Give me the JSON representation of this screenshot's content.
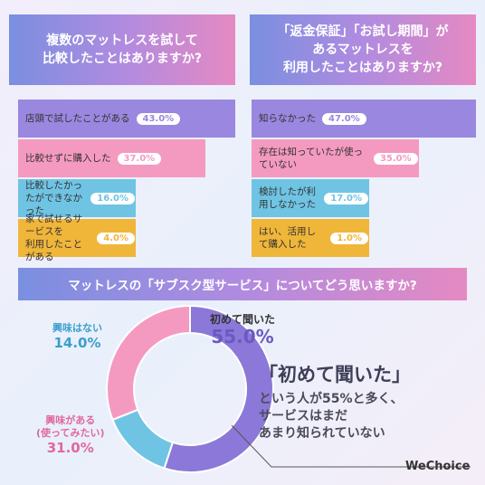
{
  "q1": {
    "title": "複数のマットレスを試して\n比較したことはありますか?",
    "chart_data": {
      "type": "bar",
      "categories": [
        "店頭で試したことがある",
        "比較せずに購入した",
        "比較したかったができなかった",
        "家で試せるサービスを\n利用したことがある"
      ],
      "values": [
        43.0,
        37.0,
        16.0,
        4.0
      ],
      "value_labels": [
        "43.0%",
        "37.0%",
        "16.0%",
        "4.0%"
      ],
      "colors": [
        "#9a87df",
        "#f49ac0",
        "#6fc4e4",
        "#f0b63a"
      ]
    }
  },
  "q2": {
    "title": "「返金保証」「お試し期間」が\nあるマットレスを\n利用したことはありますか?",
    "chart_data": {
      "type": "bar",
      "categories": [
        "知らなかった",
        "存在は知っていたが使っていない",
        "検討したが利用しなかった",
        "はい、活用して購入した"
      ],
      "values": [
        47.0,
        35.0,
        17.0,
        1.0
      ],
      "value_labels": [
        "47.0%",
        "35.0%",
        "17.0%",
        "1.0%"
      ],
      "colors": [
        "#9a87df",
        "#f49ac0",
        "#6fc4e4",
        "#f0b63a"
      ]
    }
  },
  "q3": {
    "title": "マットレスの「サブスク型サービス」についてどう思いますか?",
    "chart_data": {
      "type": "pie",
      "categories": [
        "初めて聞いた",
        "興味はない",
        "興味がある\n(使ってみたい)"
      ],
      "values": [
        55.0,
        14.0,
        31.0
      ],
      "value_labels": [
        "55.0%",
        "14.0%",
        "31.0%"
      ],
      "colors": [
        "#8c78d8",
        "#6fc4e4",
        "#f49ac0"
      ]
    }
  },
  "callout": {
    "head": "「初めて聞いた」",
    "body": "という人が55%と多く、\nサービスはまだ\nあまり知られていない"
  },
  "logo": "WeChoice"
}
